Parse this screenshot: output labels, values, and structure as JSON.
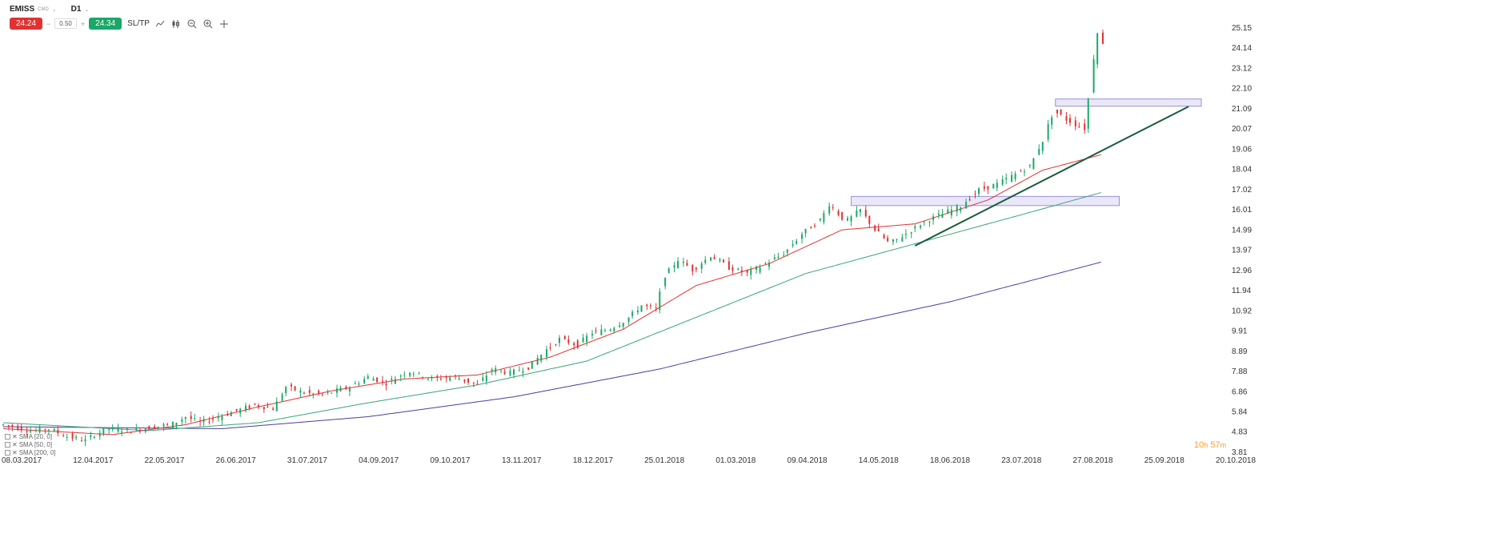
{
  "toolbar": {
    "symbol": "EMISS",
    "symbol_tag": "CMD",
    "timeframe": "D1",
    "sell_price": "24.24",
    "volume": "0.50",
    "buy_price": "24.34",
    "sltp_label": "SL/TP",
    "minus": "−",
    "plus": "+"
  },
  "legend": [
    {
      "label": "SMA [20, 0]",
      "color": "#e03232"
    },
    {
      "label": "SMA [50, 0]",
      "color": "#3aa57a"
    },
    {
      "label": "SMA [200, 0]",
      "color": "#4a3fa0"
    }
  ],
  "timer": {
    "hours": "10",
    "h": "h",
    "minutes": "57",
    "m": "m"
  },
  "chart_data": {
    "type": "candlestick",
    "y_ticks": [
      "25.15",
      "24.14",
      "23.12",
      "22.10",
      "21.09",
      "20.07",
      "19.06",
      "18.04",
      "17.02",
      "16.01",
      "14.99",
      "13.97",
      "12.96",
      "11.94",
      "10.92",
      "9.91",
      "8.89",
      "7.88",
      "6.86",
      "5.84",
      "4.83",
      "3.81"
    ],
    "x_ticks": [
      "08.03.2017",
      "12.04.2017",
      "22.05.2017",
      "26.06.2017",
      "31.07.2017",
      "04.09.2017",
      "09.10.2017",
      "13.11.2017",
      "18.12.2017",
      "25.01.2018",
      "01.03.2018",
      "09.04.2018",
      "14.05.2018",
      "18.06.2018",
      "23.07.2018",
      "27.08.2018",
      "25.09.2018",
      "20.10.2018"
    ],
    "ylim": [
      3.81,
      25.15
    ],
    "close_path": [
      [
        0,
        5.2
      ],
      [
        15,
        4.9
      ],
      [
        25,
        5.0
      ],
      [
        35,
        4.6
      ],
      [
        45,
        4.4
      ],
      [
        50,
        4.7
      ],
      [
        58,
        5.0
      ],
      [
        70,
        4.9
      ],
      [
        82,
        5.1
      ],
      [
        92,
        5.2
      ],
      [
        100,
        5.6
      ],
      [
        108,
        5.3
      ],
      [
        118,
        5.6
      ],
      [
        128,
        5.9
      ],
      [
        138,
        6.2
      ],
      [
        148,
        6.0
      ],
      [
        155,
        7.1
      ],
      [
        165,
        6.8
      ],
      [
        175,
        6.7
      ],
      [
        190,
        7.1
      ],
      [
        200,
        7.6
      ],
      [
        210,
        7.3
      ],
      [
        222,
        7.9
      ],
      [
        235,
        7.5
      ],
      [
        248,
        7.6
      ],
      [
        260,
        7.2
      ],
      [
        268,
        8.0
      ],
      [
        278,
        7.8
      ],
      [
        288,
        8.1
      ],
      [
        297,
        8.9
      ],
      [
        305,
        9.5
      ],
      [
        315,
        9.2
      ],
      [
        322,
        9.8
      ],
      [
        332,
        10.0
      ],
      [
        342,
        10.5
      ],
      [
        350,
        11.2
      ],
      [
        358,
        11.0
      ],
      [
        362,
        12.6
      ],
      [
        370,
        13.5
      ],
      [
        378,
        13.0
      ],
      [
        388,
        13.7
      ],
      [
        398,
        13.1
      ],
      [
        408,
        12.8
      ],
      [
        418,
        13.3
      ],
      [
        428,
        13.8
      ],
      [
        438,
        14.8
      ],
      [
        448,
        15.5
      ],
      [
        453,
        16.3
      ],
      [
        462,
        15.4
      ],
      [
        470,
        16.0
      ],
      [
        478,
        15.0
      ],
      [
        486,
        14.3
      ],
      [
        495,
        14.8
      ],
      [
        505,
        15.4
      ],
      [
        515,
        15.8
      ],
      [
        525,
        16.2
      ],
      [
        535,
        17.0
      ],
      [
        545,
        17.3
      ],
      [
        555,
        17.8
      ],
      [
        563,
        18.2
      ],
      [
        570,
        19.5
      ],
      [
        576,
        21.0
      ],
      [
        582,
        20.6
      ],
      [
        588,
        20.3
      ],
      [
        593,
        20.1
      ],
      [
        597,
        23.0
      ],
      [
        600,
        25.0
      ],
      [
        603,
        24.3
      ]
    ],
    "sma20": [
      [
        0,
        5.0
      ],
      [
        60,
        4.7
      ],
      [
        100,
        5.2
      ],
      [
        140,
        6.1
      ],
      [
        180,
        6.9
      ],
      [
        220,
        7.5
      ],
      [
        260,
        7.7
      ],
      [
        300,
        8.6
      ],
      [
        340,
        10.0
      ],
      [
        380,
        12.2
      ],
      [
        420,
        13.3
      ],
      [
        460,
        15.0
      ],
      [
        500,
        15.3
      ],
      [
        540,
        16.5
      ],
      [
        570,
        18.0
      ],
      [
        603,
        18.8
      ]
    ],
    "sma50": [
      [
        0,
        5.3
      ],
      [
        80,
        4.9
      ],
      [
        140,
        5.3
      ],
      [
        200,
        6.3
      ],
      [
        260,
        7.2
      ],
      [
        320,
        8.4
      ],
      [
        380,
        10.6
      ],
      [
        440,
        12.8
      ],
      [
        500,
        14.3
      ],
      [
        560,
        15.8
      ],
      [
        603,
        16.9
      ]
    ],
    "sma200": [
      [
        0,
        5.1
      ],
      [
        120,
        5.0
      ],
      [
        200,
        5.6
      ],
      [
        280,
        6.6
      ],
      [
        360,
        8.0
      ],
      [
        440,
        9.8
      ],
      [
        520,
        11.4
      ],
      [
        603,
        13.4
      ]
    ],
    "trendline": {
      "from": [
        500,
        14.2
      ],
      "to": [
        650,
        21.2
      ]
    },
    "zones": [
      {
        "x_from": 465,
        "x_to": 612,
        "y_low": 16.3,
        "y_high": 16.6
      },
      {
        "x_from": 577,
        "x_to": 657,
        "y_low": 21.3,
        "y_high": 21.5
      }
    ]
  }
}
